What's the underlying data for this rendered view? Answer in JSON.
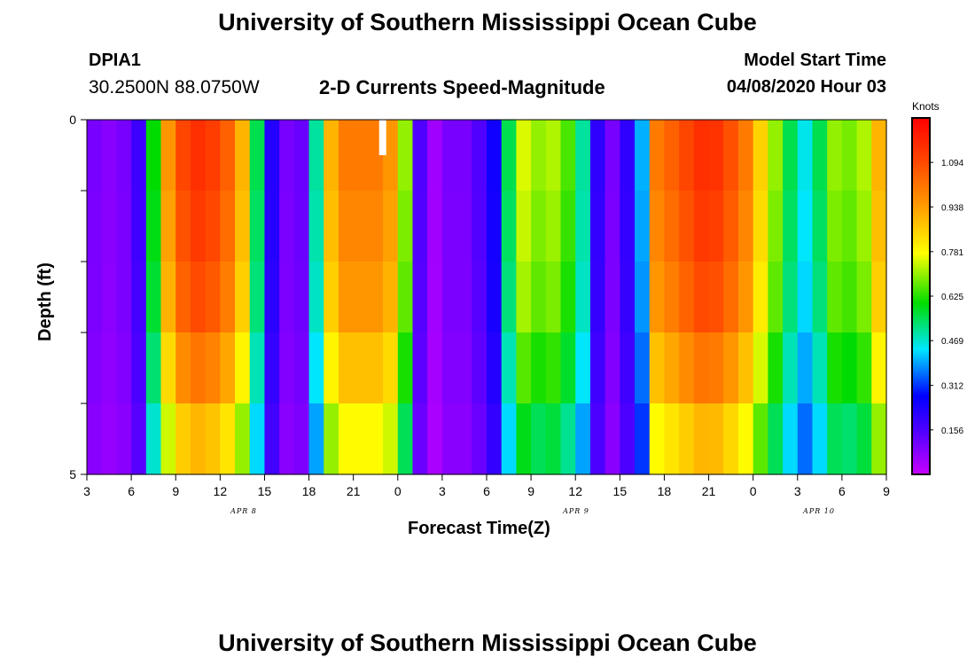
{
  "header": {
    "title": "University of Southern Mississippi Ocean Cube",
    "station": "DPIA1",
    "coords": "30.2500N 88.0750W",
    "chart_subtitle": "2-D Currents Speed-Magnitude",
    "model_label": "Model Start Time",
    "model_time": "04/08/2020 Hour 03"
  },
  "footer": {
    "title": "University of Southern Mississippi Ocean Cube"
  },
  "colorbar": {
    "unit": "Knots",
    "ticks": [
      "1.094",
      "0.938",
      "0.781",
      "0.625",
      "0.469",
      "0.312",
      "0.156"
    ]
  },
  "chart_data": {
    "type": "heatmap",
    "xlabel": "Forecast Time(Z)",
    "ylabel": "Depth (ft)",
    "ylim": [
      0,
      5
    ],
    "y_tick_labels": [
      "0",
      "5"
    ],
    "x_tick_labels": [
      "3",
      "6",
      "9",
      "12",
      "15",
      "18",
      "21",
      "0",
      "3",
      "6",
      "9",
      "12",
      "15",
      "18",
      "21",
      "0",
      "3",
      "6",
      "9"
    ],
    "date_labels": [
      "APR 8",
      "APR 9",
      "APR 10"
    ],
    "depth_levels": 5,
    "time_steps_hours": 54,
    "value_range": [
      0.0,
      1.25
    ],
    "colorbar_values": [
      1.094,
      0.938,
      0.781,
      0.625,
      0.469,
      0.312,
      0.156
    ],
    "surface_speed_knots": [
      0.1,
      0.08,
      0.1,
      0.18,
      0.6,
      0.95,
      1.1,
      1.15,
      1.12,
      1.05,
      0.9,
      0.55,
      0.22,
      0.1,
      0.12,
      0.5,
      0.9,
      1.0,
      1.0,
      1.0,
      0.95,
      0.7,
      0.15,
      0.05,
      0.1,
      0.1,
      0.15,
      0.25,
      0.55,
      0.75,
      0.7,
      0.72,
      0.65,
      0.5,
      0.2,
      0.1,
      0.2,
      0.4,
      1.0,
      1.05,
      1.1,
      1.15,
      1.14,
      1.08,
      1.0,
      0.85,
      0.7,
      0.55,
      0.45,
      0.55,
      0.7,
      0.68,
      0.72,
      0.9
    ],
    "speed_by_depth_scale": [
      1.0,
      0.98,
      0.95,
      0.88,
      0.78
    ],
    "missing_cell": {
      "time_hour": 22.5,
      "depth_level": 0
    }
  }
}
